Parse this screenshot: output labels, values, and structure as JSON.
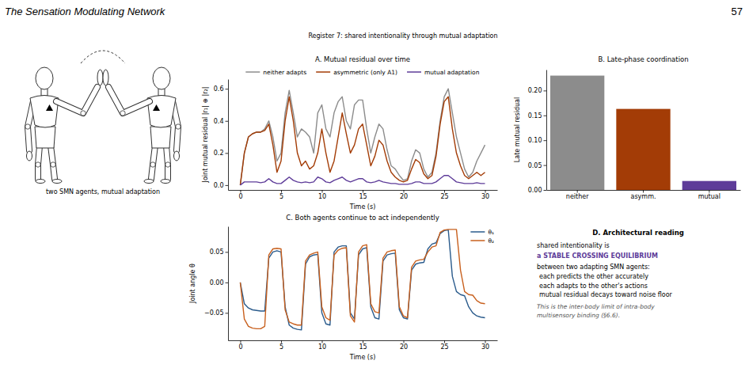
{
  "page": {
    "header": "The Sensation Modulating Network",
    "page_number": 57,
    "figure_title": "Register 7: shared intentionality through mutual adaptation",
    "illustration_caption": "two SMN agents, mutual adaptation",
    "panel_d": {
      "title": "D. Architectural reading",
      "intro": "shared intentionality is",
      "highlight": "a STABLE CROSSING EQUILIBRIUM",
      "lead": "between two adapting SMN agents:",
      "points": [
        "each predicts the other accurately",
        "each adapts to the other's actions",
        "mutual residual decays toward noise floor"
      ],
      "note": [
        "This is the inter-body limit of intra-body",
        "multisensory binding (§6.6)."
      ]
    }
  },
  "chart_data": [
    {
      "type": "line",
      "title": "A. Mutual residual over time",
      "x_label": "Time (s)",
      "y_label": "Joint mutual residual |r₁| ⊕ |r₂|",
      "x": [
        0,
        0.5,
        1,
        1.5,
        2,
        2.5,
        3,
        3.5,
        4,
        4.5,
        5,
        5.5,
        6,
        6.5,
        7,
        7.5,
        8,
        8.5,
        9,
        9.5,
        10,
        10.5,
        11,
        11.5,
        12,
        12.5,
        13,
        13.5,
        14,
        14.5,
        15,
        15.5,
        16,
        16.5,
        17,
        17.5,
        18,
        18.5,
        19,
        19.5,
        20,
        20.5,
        21,
        21.5,
        22,
        22.5,
        23,
        23.5,
        24,
        24.5,
        25,
        25.5,
        26,
        26.5,
        27,
        27.5,
        28,
        28.5,
        29,
        29.5,
        30
      ],
      "series": [
        {
          "name": "neither adapts",
          "color": "#8c8c8c",
          "values": [
            0,
            0.2,
            0.3,
            0.32,
            0.33,
            0.33,
            0.35,
            0.4,
            0.3,
            0.15,
            0.2,
            0.45,
            0.59,
            0.45,
            0.3,
            0.35,
            0.33,
            0.3,
            0.2,
            0.45,
            0.5,
            0.35,
            0.3,
            0.45,
            0.52,
            0.55,
            0.4,
            0.35,
            0.5,
            0.53,
            0.53,
            0.35,
            0.2,
            0.3,
            0.38,
            0.35,
            0.22,
            0.12,
            0.1,
            0.06,
            0.03,
            0.04,
            0.15,
            0.22,
            0.2,
            0.1,
            0.05,
            0.08,
            0.2,
            0.4,
            0.55,
            0.6,
            0.45,
            0.3,
            0.2,
            0.1,
            0.05,
            0.08,
            0.15,
            0.2,
            0.25
          ]
        },
        {
          "name": "asymmetric (only A1)",
          "color": "#a33c06",
          "values": [
            0,
            0.2,
            0.3,
            0.32,
            0.33,
            0.33,
            0.34,
            0.38,
            0.25,
            0.08,
            0.15,
            0.4,
            0.55,
            0.4,
            0.2,
            0.12,
            0.15,
            0.1,
            0.12,
            0.2,
            0.35,
            0.2,
            0.08,
            0.15,
            0.3,
            0.45,
            0.32,
            0.2,
            0.25,
            0.35,
            0.38,
            0.25,
            0.12,
            0.18,
            0.28,
            0.25,
            0.15,
            0.08,
            0.05,
            0.03,
            0.02,
            0.03,
            0.1,
            0.16,
            0.14,
            0.07,
            0.04,
            0.06,
            0.18,
            0.38,
            0.52,
            0.55,
            0.35,
            0.2,
            0.12,
            0.06,
            0.04,
            0.06,
            0.08,
            0.06,
            0.08
          ]
        },
        {
          "name": "mutual adaptation",
          "color": "#5e3c99",
          "values": [
            0,
            0.02,
            0.02,
            0.02,
            0.02,
            0.015,
            0.02,
            0.04,
            0.02,
            0.01,
            0.01,
            0.03,
            0.05,
            0.03,
            0.02,
            0.015,
            0.02,
            0.015,
            0.02,
            0.05,
            0.04,
            0.02,
            0.015,
            0.03,
            0.04,
            0.05,
            0.03,
            0.02,
            0.03,
            0.04,
            0.04,
            0.02,
            0.015,
            0.02,
            0.03,
            0.02,
            0.015,
            0.01,
            0.01,
            0.005,
            0.005,
            0.005,
            0.01,
            0.02,
            0.02,
            0.01,
            0.01,
            0.01,
            0.02,
            0.04,
            0.06,
            0.06,
            0.04,
            0.02,
            0.015,
            0.01,
            0.01,
            0.01,
            0.015,
            0.01,
            0.01
          ]
        }
      ],
      "xlim": [
        -1.5,
        31.5
      ],
      "xticks": [
        0,
        5,
        10,
        15,
        20,
        25,
        30
      ],
      "ylim": [
        -0.03,
        0.66
      ],
      "yticks": [
        {
          "value": 0,
          "label": "0.0"
        },
        0.2,
        0.4,
        0.6
      ],
      "legend": "top"
    },
    {
      "type": "bar",
      "title": "B. Late-phase coordination",
      "y_label": "Late mutual residual",
      "categories": [
        "neither",
        "asymm.",
        "mutual"
      ],
      "values": [
        0.23,
        0.163,
        0.018
      ],
      "colors": [
        "#8c8c8c",
        "#a33c06",
        "#5e3c99"
      ],
      "ylim": [
        0,
        0.242
      ],
      "yticks": [
        {
          "value": 0,
          "label": "0.00"
        },
        0.05,
        {
          "value": 0.1,
          "label": "0.10"
        },
        0.15,
        {
          "value": 0.2,
          "label": "0.20"
        }
      ]
    },
    {
      "type": "line",
      "title": "C. Both agents continue to act independently",
      "x_label": "Time (s)",
      "y_label": "Joint angle θ",
      "x": [
        0,
        0.5,
        1,
        1.5,
        2,
        2.5,
        3,
        3.5,
        4,
        4.5,
        5,
        5.5,
        6,
        6.5,
        7,
        7.5,
        8,
        8.5,
        9,
        9.5,
        10,
        10.5,
        11,
        11.5,
        12,
        12.5,
        13,
        13.5,
        14,
        14.5,
        15,
        15.5,
        16,
        16.5,
        17,
        17.5,
        18,
        18.5,
        19,
        19.5,
        20,
        20.5,
        21,
        21.5,
        22,
        22.5,
        23,
        23.5,
        24,
        24.5,
        25,
        25.5,
        26,
        26.5,
        27,
        27.5,
        28,
        28.5,
        29,
        29.5,
        30
      ],
      "series": [
        {
          "name": "θ₁",
          "color": "#2a5b8c",
          "values": [
            0,
            -0.035,
            -0.042,
            -0.045,
            -0.046,
            -0.047,
            -0.047,
            0.04,
            0.05,
            0.052,
            0.05,
            -0.04,
            -0.07,
            -0.075,
            -0.077,
            -0.078,
            0.03,
            0.042,
            0.045,
            0.046,
            -0.05,
            -0.068,
            -0.07,
            0.05,
            0.058,
            0.06,
            0.06,
            -0.05,
            -0.06,
            0.045,
            0.055,
            0.057,
            -0.04,
            -0.058,
            -0.06,
            0.035,
            0.045,
            0.047,
            0.048,
            -0.045,
            -0.058,
            -0.06,
            0.02,
            0.03,
            0.032,
            0.033,
            0.055,
            0.063,
            0.065,
            0.08,
            0.085,
            0.086,
            0.01,
            -0.015,
            -0.02,
            -0.022,
            -0.04,
            -0.05,
            -0.055,
            -0.057,
            -0.058
          ]
        },
        {
          "name": "θ₂",
          "color": "#c8601e",
          "values": [
            0,
            -0.06,
            -0.072,
            -0.075,
            -0.076,
            -0.076,
            -0.072,
            0.045,
            0.055,
            0.056,
            0.055,
            -0.045,
            -0.065,
            -0.068,
            -0.07,
            -0.07,
            0.035,
            0.045,
            0.048,
            0.05,
            -0.04,
            -0.058,
            -0.062,
            0.045,
            0.053,
            0.056,
            0.057,
            -0.055,
            -0.065,
            0.05,
            0.06,
            0.062,
            -0.035,
            -0.048,
            -0.05,
            0.04,
            0.05,
            0.052,
            0.053,
            -0.04,
            -0.055,
            -0.058,
            0.025,
            0.035,
            0.037,
            0.038,
            0.05,
            0.058,
            0.06,
            0.082,
            0.086,
            0.087,
            0.087,
            0.087,
            0.02,
            -0.015,
            -0.02,
            -0.021,
            -0.03,
            -0.034,
            -0.035
          ]
        }
      ],
      "xlim": [
        -1.5,
        31.5
      ],
      "xticks": [
        0,
        5,
        10,
        15,
        20,
        25,
        30
      ],
      "ylim": [
        -0.095,
        0.092
      ],
      "yticks": [
        {
          "value": -0.05,
          "label": "−0.05"
        },
        {
          "value": 0,
          "label": "0.00"
        },
        0.05
      ],
      "legend": "upper right"
    }
  ]
}
